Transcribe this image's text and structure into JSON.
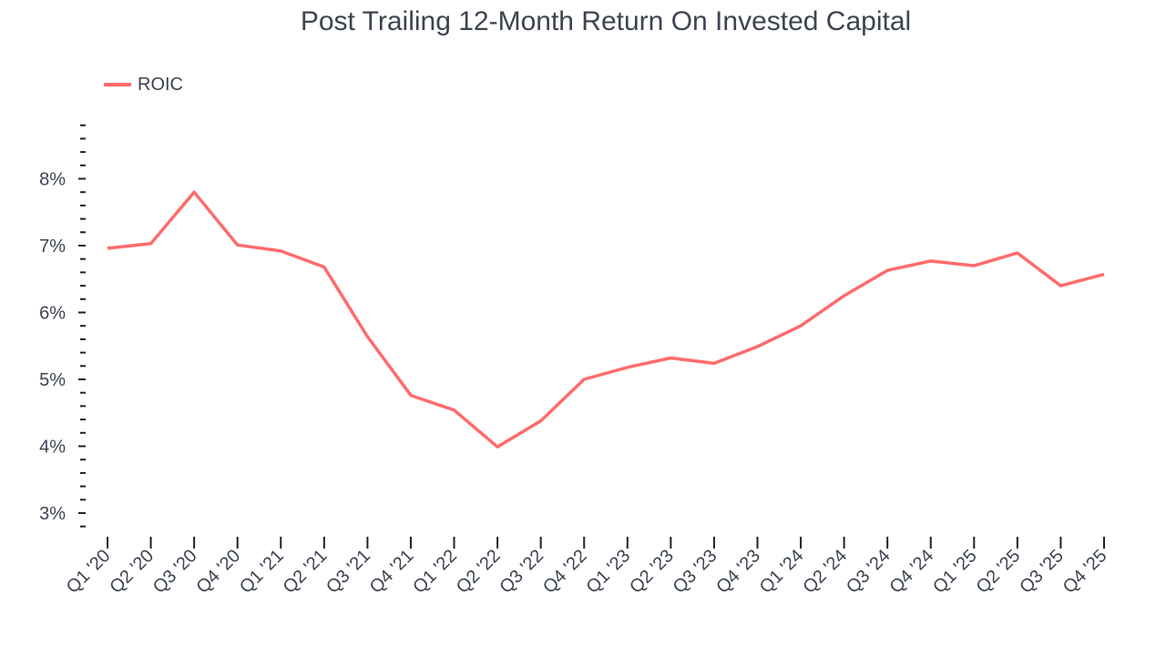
{
  "chart_data": {
    "type": "line",
    "title": "Post Trailing 12-Month Return On Invested Capital",
    "xlabel": "",
    "ylabel": "",
    "ylim": [
      2.8,
      8.8
    ],
    "yticks": [
      3,
      4,
      5,
      6,
      7,
      8
    ],
    "ytick_labels": [
      "3%",
      "4%",
      "5%",
      "6%",
      "7%",
      "8%"
    ],
    "minor_tick_step": 0.2,
    "grid": false,
    "legend_position": "top-left",
    "categories": [
      "Q1 '20",
      "Q2 '20",
      "Q3 '20",
      "Q4 '20",
      "Q1 '21",
      "Q2 '21",
      "Q3 '21",
      "Q4 '21",
      "Q1 '22",
      "Q2 '22",
      "Q3 '22",
      "Q4 '22",
      "Q1 '23",
      "Q2 '23",
      "Q3 '23",
      "Q4 '23",
      "Q1 '24",
      "Q2 '24",
      "Q3 '24",
      "Q4 '24",
      "Q1 '25",
      "Q2 '25",
      "Q3 '25",
      "Q4 '25"
    ],
    "series": [
      {
        "name": "ROIC",
        "color": "#ff6b6b",
        "values": [
          6.96,
          7.03,
          7.8,
          7.01,
          6.92,
          6.68,
          5.64,
          4.76,
          4.54,
          3.99,
          4.38,
          5.0,
          5.18,
          5.32,
          5.24,
          5.49,
          5.8,
          6.25,
          6.63,
          6.77,
          6.7,
          6.89,
          6.4,
          6.57
        ]
      }
    ]
  }
}
